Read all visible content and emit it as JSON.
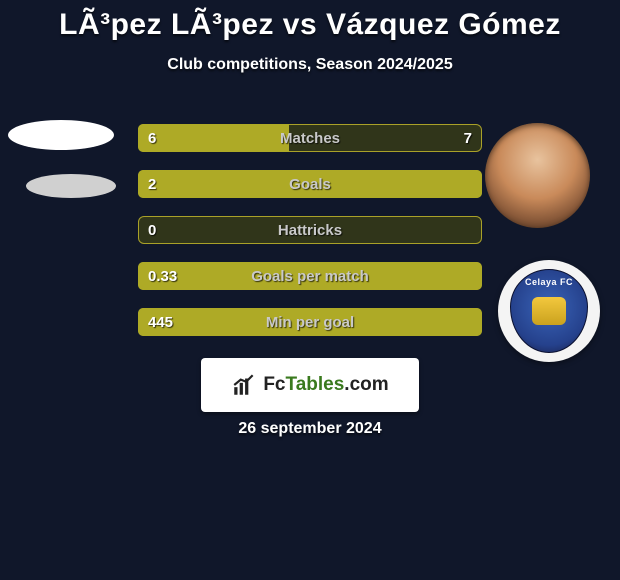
{
  "title": "LÃ³pez LÃ³pez vs Vázquez Gómez",
  "subtitle": "Club competitions, Season 2024/2025",
  "date": "26 september 2024",
  "logo_text_1": "Fc",
  "logo_text_2": "Tables",
  "logo_text_3": ".com",
  "club_name": "Celaya FC",
  "colors": {
    "background": "#10172a",
    "bar_fill": "#aeaa26",
    "bar_border": "#a9a128",
    "bar_track": "#30351a",
    "text": "#ffffff",
    "label_muted": "#c9c9c9",
    "logo_bg": "#ffffff",
    "badge_blue": "#25418c"
  },
  "bars": [
    {
      "label": "Matches",
      "left": "6",
      "right": "7",
      "fill_pct": 44
    },
    {
      "label": "Goals",
      "left": "2",
      "right": "",
      "fill_pct": 100
    },
    {
      "label": "Hattricks",
      "left": "0",
      "right": "",
      "fill_pct": 0
    },
    {
      "label": "Goals per match",
      "left": "0.33",
      "right": "",
      "fill_pct": 100
    },
    {
      "label": "Min per goal",
      "left": "445",
      "right": "",
      "fill_pct": 100
    }
  ]
}
